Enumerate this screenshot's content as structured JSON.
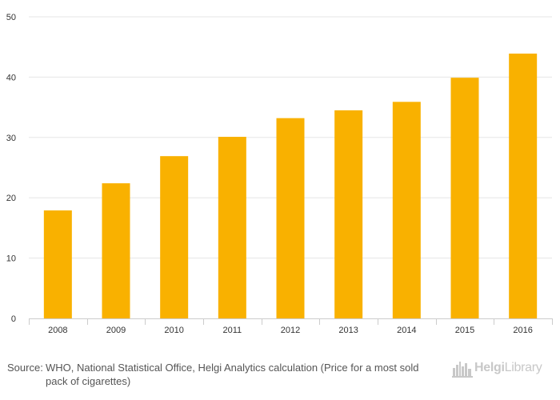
{
  "chart_data": {
    "type": "bar",
    "categories": [
      "2008",
      "2009",
      "2010",
      "2011",
      "2012",
      "2013",
      "2014",
      "2015",
      "2016"
    ],
    "values": [
      17.9,
      22.4,
      26.9,
      30.1,
      33.2,
      34.5,
      35.9,
      39.9,
      43.9
    ],
    "ylim": [
      0,
      50
    ],
    "yticks": [
      0,
      10,
      20,
      30,
      40,
      50
    ],
    "grid": true,
    "bar_color": "#f9b100"
  },
  "footer": {
    "source_prefix": "Source:",
    "source_text": "WHO, National Statistical Office, Helgi Analytics calculation (Price for a most sold pack of cigarettes)"
  },
  "logo": {
    "brand_strong": "Helgi",
    "brand_rest": "Library",
    "color": "#c8c8c8"
  }
}
